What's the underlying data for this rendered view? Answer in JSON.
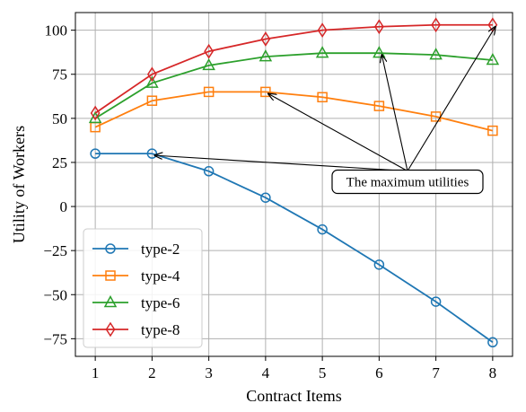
{
  "chart_data": {
    "type": "line",
    "xlabel": "Contract Items",
    "ylabel": "Utility of Workers",
    "x": [
      1,
      2,
      3,
      4,
      5,
      6,
      7,
      8
    ],
    "xlim": [
      0.65,
      8.35
    ],
    "ylim": [
      -85,
      110
    ],
    "xticks": [
      1,
      2,
      3,
      4,
      5,
      6,
      7,
      8
    ],
    "yticks": [
      -75,
      -50,
      -25,
      0,
      25,
      50,
      75,
      100
    ],
    "ytick_labels": [
      "−75",
      "−50",
      "−25",
      "0",
      "25",
      "50",
      "75",
      "100"
    ],
    "grid": true,
    "legend_position": "lower-left",
    "series": [
      {
        "name": "type-2",
        "color": "#1f77b4",
        "marker": "circle",
        "values": [
          30,
          30,
          20,
          5,
          -13,
          -33,
          -54,
          -77
        ]
      },
      {
        "name": "type-4",
        "color": "#ff7f0e",
        "marker": "square",
        "values": [
          45,
          60,
          65,
          65,
          62,
          57,
          51,
          43
        ]
      },
      {
        "name": "type-6",
        "color": "#2ca02c",
        "marker": "triangle",
        "values": [
          50,
          70,
          80,
          85,
          87,
          87,
          86,
          83
        ]
      },
      {
        "name": "type-8",
        "color": "#d62728",
        "marker": "diamond",
        "values": [
          53,
          75,
          88,
          95,
          100,
          102,
          103,
          103
        ]
      }
    ],
    "annotation": {
      "text": "The maximum utilities",
      "anchor": {
        "x": 6.5,
        "y": 13
      },
      "targets": [
        {
          "x": 2,
          "y": 30
        },
        {
          "x": 4,
          "y": 65
        },
        {
          "x": 6,
          "y": 87
        },
        {
          "x": 8,
          "y": 103
        }
      ]
    }
  }
}
